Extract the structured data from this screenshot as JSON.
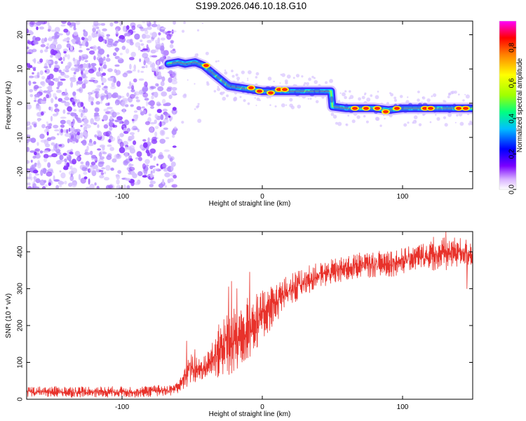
{
  "figure": {
    "title": "S199.2026.046.10.18.G10"
  },
  "colors": {
    "snr_line": "#e8322b",
    "scatter_noise": "#8b3bff",
    "scatter_faint": "#d7c3ff",
    "trace_edge": "#3a2cff",
    "trace_core_low": "#00d0ff",
    "trace_core_high": "#ff2a00"
  },
  "chart_data": [
    {
      "type": "heatmap",
      "name": "spectrogram",
      "xlabel": "Height of straight line (km)",
      "ylabel": "Frequency (Hz)",
      "xlim": [
        -168,
        150
      ],
      "ylim": [
        -25,
        24
      ],
      "xticks": [
        -100,
        0,
        100
      ],
      "yticks": [
        -20,
        -10,
        0,
        10,
        20
      ],
      "noise_region_x": [
        -168,
        -62
      ],
      "trace": [
        {
          "x": -67,
          "y": 11.5
        },
        {
          "x": -60,
          "y": 12.0
        },
        {
          "x": -55,
          "y": 11.5
        },
        {
          "x": -48,
          "y": 12.0
        },
        {
          "x": -42,
          "y": 11.0
        },
        {
          "x": -36,
          "y": 9.0
        },
        {
          "x": -30,
          "y": 7.0
        },
        {
          "x": -24,
          "y": 5.0
        },
        {
          "x": -16,
          "y": 4.5
        },
        {
          "x": -8,
          "y": 4.0
        },
        {
          "x": 0,
          "y": 3.5
        },
        {
          "x": 10,
          "y": 3.5
        },
        {
          "x": 20,
          "y": 3.5
        },
        {
          "x": 30,
          "y": 3.5
        },
        {
          "x": 40,
          "y": 3.5
        },
        {
          "x": 49,
          "y": 3.5
        },
        {
          "x": 50,
          "y": -1.0
        },
        {
          "x": 60,
          "y": -1.5
        },
        {
          "x": 70,
          "y": -1.5
        },
        {
          "x": 80,
          "y": -1.5
        },
        {
          "x": 90,
          "y": -2.0
        },
        {
          "x": 100,
          "y": -1.5
        },
        {
          "x": 110,
          "y": -1.5
        },
        {
          "x": 120,
          "y": -1.5
        },
        {
          "x": 130,
          "y": -1.5
        },
        {
          "x": 140,
          "y": -1.5
        },
        {
          "x": 150,
          "y": -1.5
        }
      ],
      "hotspots": [
        {
          "x": -40,
          "y": 11.0
        },
        {
          "x": -8,
          "y": 4.5
        },
        {
          "x": -2,
          "y": 3.5
        },
        {
          "x": 6,
          "y": 3.0
        },
        {
          "x": 12,
          "y": 4.0
        },
        {
          "x": 16,
          "y": 4.0
        },
        {
          "x": 66,
          "y": -1.5
        },
        {
          "x": 74,
          "y": -1.5
        },
        {
          "x": 82,
          "y": -1.5
        },
        {
          "x": 88,
          "y": -2.5
        },
        {
          "x": 96,
          "y": -1.5
        },
        {
          "x": 116,
          "y": -1.5
        },
        {
          "x": 120,
          "y": -1.5
        },
        {
          "x": 140,
          "y": -1.5
        },
        {
          "x": 145,
          "y": -1.5
        }
      ]
    },
    {
      "type": "colorbar",
      "name": "spectrum-colorbar",
      "label": "Normalized spectral amplitude",
      "range": [
        0.0,
        0.95
      ],
      "ticks": [
        "0.0",
        "0.2",
        "0.4",
        "0.6",
        "0.8"
      ],
      "tick_values": [
        0.0,
        0.2,
        0.4,
        0.6,
        0.8
      ],
      "colors": [
        "#ffffff",
        "#d9b3ff",
        "#7a00ff",
        "#0000ff",
        "#00bfff",
        "#00ff80",
        "#a0ff00",
        "#ffff00",
        "#ff8000",
        "#ff0000",
        "#ff00ff"
      ]
    },
    {
      "type": "line",
      "name": "snr",
      "xlabel": "Height of straight line (km)",
      "ylabel": "SNR (10 * v/v)",
      "xlim": [
        -168,
        150
      ],
      "ylim": [
        0,
        455
      ],
      "xticks": [
        -100,
        0,
        100
      ],
      "yticks": [
        0,
        100,
        200,
        300,
        400
      ],
      "envelope": {
        "x": [
          -168,
          -90,
          -65,
          -58,
          -52,
          -46,
          -40,
          -34,
          -28,
          -22,
          -16,
          -10,
          -4,
          2,
          10,
          20,
          30,
          40,
          50,
          60,
          70,
          80,
          90,
          100,
          110,
          120,
          130,
          140,
          150
        ],
        "low": [
          5,
          5,
          10,
          20,
          40,
          50,
          55,
          60,
          60,
          70,
          90,
          110,
          140,
          170,
          210,
          250,
          280,
          300,
          310,
          320,
          330,
          330,
          330,
          340,
          350,
          350,
          350,
          360,
          360
        ],
        "high": [
          35,
          35,
          40,
          60,
          130,
          110,
          120,
          180,
          230,
          240,
          260,
          280,
          280,
          300,
          320,
          340,
          360,
          370,
          380,
          390,
          400,
          400,
          410,
          410,
          420,
          430,
          440,
          440,
          430
        ]
      },
      "spikes": [
        {
          "x": -54,
          "y": 158
        },
        {
          "x": -48,
          "y": 135
        },
        {
          "x": -32,
          "y": 157
        },
        {
          "x": -24,
          "y": 305
        },
        {
          "x": -22,
          "y": 320
        },
        {
          "x": -18,
          "y": 300
        },
        {
          "x": -9,
          "y": 345
        },
        {
          "x": -4,
          "y": 285
        },
        {
          "x": 5,
          "y": 280
        },
        {
          "x": 122,
          "y": 440
        },
        {
          "x": 131,
          "y": 455
        },
        {
          "x": 146,
          "y": 300
        }
      ]
    }
  ]
}
